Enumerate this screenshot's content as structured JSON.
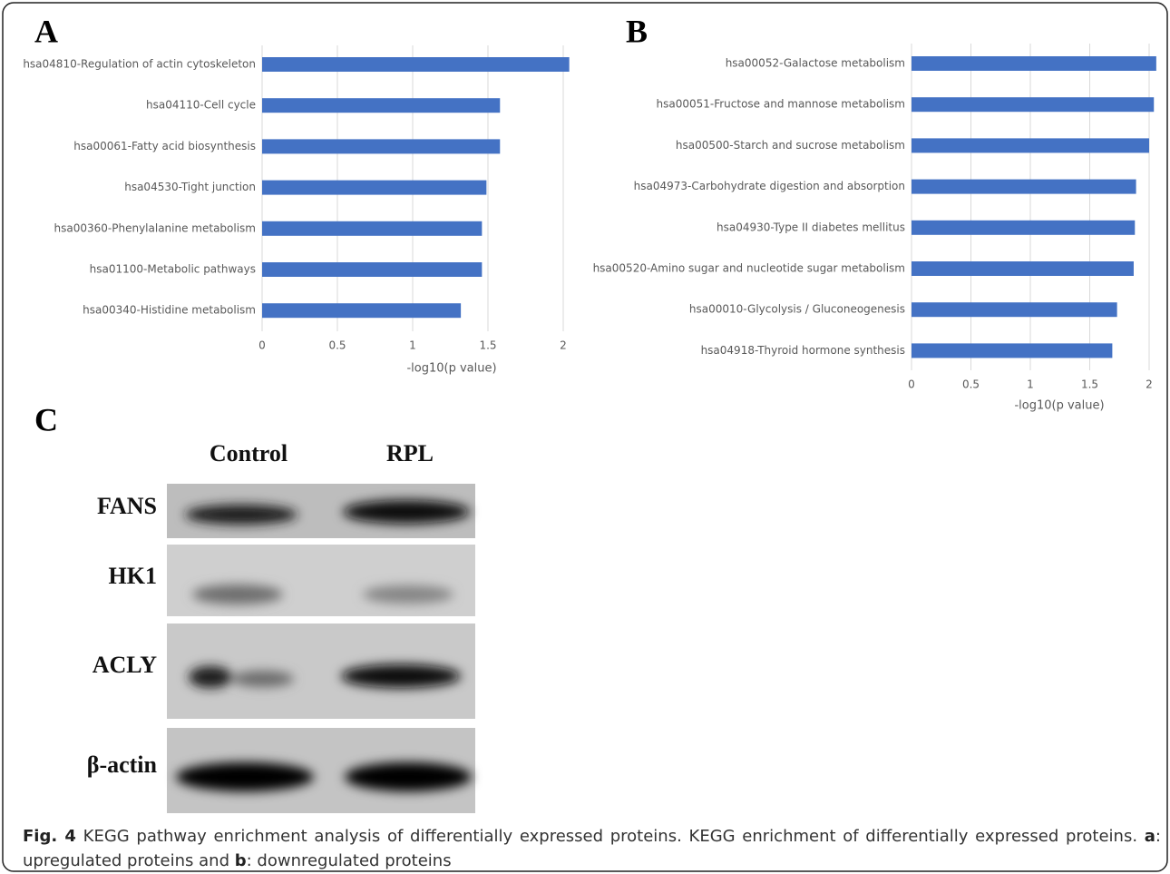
{
  "chart_data": [
    {
      "type": "bar",
      "orientation": "horizontal",
      "panel": "A",
      "categories": [
        "hsa04810-Regulation of actin cytoskeleton",
        "hsa04110-Cell cycle",
        "hsa00061-Fatty acid biosynthesis",
        "hsa04530-Tight junction",
        "hsa00360-Phenylalanine metabolism",
        "hsa01100-Metabolic pathways",
        "hsa00340-Histidine metabolism"
      ],
      "values": [
        2.04,
        1.58,
        1.58,
        1.49,
        1.46,
        1.46,
        1.32
      ],
      "color": "#4472c4",
      "xlabel": "-log10(p value)",
      "xlim": [
        0,
        2.1
      ],
      "xticks": [
        0,
        0.5,
        1,
        1.5,
        2
      ],
      "grid": true
    },
    {
      "type": "bar",
      "orientation": "horizontal",
      "panel": "B",
      "categories": [
        "hsa00052-Galactose metabolism",
        "hsa00051-Fructose and mannose metabolism",
        "hsa00500-Starch and sucrose metabolism",
        "hsa04973-Carbohydrate digestion and absorption",
        "hsa04930-Type II diabetes mellitus",
        "hsa00520-Amino sugar and nucleotide sugar metabolism",
        "hsa00010-Glycolysis / Gluconeogenesis",
        "hsa04918-Thyroid hormone synthesis"
      ],
      "values": [
        2.06,
        2.04,
        2.0,
        1.89,
        1.88,
        1.87,
        1.73,
        1.69
      ],
      "color": "#4472c4",
      "xlabel": "-log10(p value)",
      "xlim": [
        0,
        2.1
      ],
      "xticks": [
        0,
        0.5,
        1,
        1.5,
        2
      ],
      "grid": true
    }
  ],
  "blot": {
    "panel": "C",
    "columns": [
      "Control",
      "RPL"
    ],
    "rows": [
      "FANS",
      "HK1",
      "ACLY",
      "β-actin"
    ]
  },
  "caption": {
    "parts": [
      "Fig. 4",
      " KEGG pathway enrichment analysis of differentially expressed proteins. KEGG enrichment of differentially expressed proteins. ",
      "a",
      ": upregulated proteins and ",
      "b",
      ": downregulated proteins"
    ]
  }
}
